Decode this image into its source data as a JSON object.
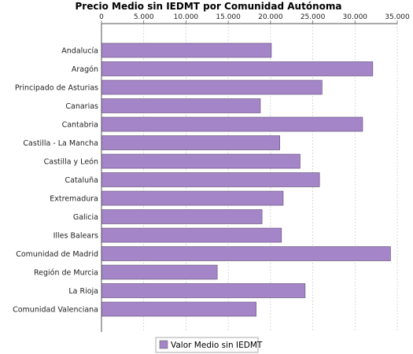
{
  "chart_data": {
    "type": "bar",
    "orientation": "horizontal",
    "title": "Precio Medio sin IEDMT por Comunidad Autónoma",
    "xlim": [
      0,
      35000
    ],
    "x_ticks": [
      "0",
      "5.000",
      "10.000",
      "15.000",
      "20.000",
      "25.000",
      "30.000",
      "35.000"
    ],
    "x_tick_values": [
      0,
      5000,
      10000,
      15000,
      20000,
      25000,
      30000,
      35000
    ],
    "axis_position": "top",
    "grid": "vertical-dashed",
    "legend_position": "bottom",
    "categories": [
      "Andalucía",
      "Aragón",
      "Principado de Asturias",
      "Canarias",
      "Cantabria",
      "Castilla - La Mancha",
      "Castilla y León",
      "Cataluña",
      "Extremadura",
      "Galicia",
      "Illes Balears",
      "Comunidad de Madrid",
      "Región de Murcia",
      "La Rioja",
      "Comunidad Valenciana"
    ],
    "series": [
      {
        "name": "Valor Medio sin IEDMT",
        "color": "#a485c8",
        "values": [
          20100,
          32100,
          26100,
          18800,
          30900,
          21100,
          23500,
          25800,
          21500,
          19000,
          21300,
          34200,
          13700,
          24100,
          18300
        ]
      }
    ]
  }
}
